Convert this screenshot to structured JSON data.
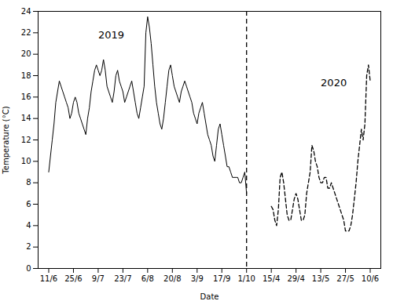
{
  "chart_data": {
    "type": "line",
    "xlabel": "Date",
    "ylabel": "Temperature (°C)",
    "xlim": [
      -6,
      188
    ],
    "xticks": [
      {
        "value": 0,
        "label": "11/6"
      },
      {
        "value": 14,
        "label": "25/6"
      },
      {
        "value": 28,
        "label": "9/7"
      },
      {
        "value": 42,
        "label": "23/7"
      },
      {
        "value": 56,
        "label": "6/8"
      },
      {
        "value": 70,
        "label": "20/8"
      },
      {
        "value": 84,
        "label": "3/9"
      },
      {
        "value": 98,
        "label": "17/9"
      },
      {
        "value": 112,
        "label": "1/10"
      },
      {
        "value": 126,
        "label": "15/4"
      },
      {
        "value": 140,
        "label": "29/4"
      },
      {
        "value": 154,
        "label": "13/5"
      },
      {
        "value": 168,
        "label": "27/5"
      },
      {
        "value": 182,
        "label": "10/6"
      }
    ],
    "ylim": [
      0,
      24
    ],
    "yticks": [
      0,
      2,
      4,
      6,
      8,
      10,
      12,
      14,
      16,
      18,
      20,
      22,
      24
    ],
    "grid": false,
    "series": [
      {
        "color": "#000000",
        "line_style": "solid",
        "x": [
          0,
          1,
          2,
          3,
          4,
          5,
          6,
          7,
          8,
          9,
          10,
          11,
          12,
          13,
          14,
          15,
          16,
          17,
          18,
          19,
          20,
          21,
          22,
          23,
          24,
          25,
          26,
          27,
          28,
          29,
          30,
          31,
          32,
          33,
          34,
          35,
          36,
          37,
          38,
          39,
          40,
          41,
          42,
          43,
          44,
          45,
          46,
          47,
          48,
          49,
          50,
          51,
          52,
          53,
          54,
          55,
          56,
          57,
          58,
          59,
          60,
          61,
          62,
          63,
          64,
          65,
          66,
          67,
          68,
          69,
          70,
          71,
          72,
          73,
          74,
          75,
          76,
          77,
          78,
          79,
          80,
          81,
          82,
          83,
          84,
          85,
          86,
          87,
          88,
          89,
          90,
          91,
          92,
          93,
          94,
          95,
          96,
          97,
          98,
          99,
          100,
          101,
          102,
          103,
          104,
          105,
          106,
          107,
          108,
          109,
          110,
          111,
          112
        ],
        "values": [
          9.0,
          10.5,
          12.0,
          13.5,
          15.5,
          16.5,
          17.5,
          17.0,
          16.5,
          16.0,
          15.5,
          15.0,
          14.0,
          14.5,
          15.5,
          16.0,
          15.5,
          14.5,
          14.0,
          13.5,
          13.0,
          12.5,
          14.0,
          15.0,
          16.5,
          17.5,
          18.5,
          19.0,
          18.5,
          18.0,
          18.5,
          19.5,
          18.5,
          17.0,
          16.5,
          16.0,
          15.5,
          16.5,
          18.0,
          18.5,
          17.5,
          17.0,
          16.5,
          15.5,
          16.0,
          16.5,
          17.0,
          17.5,
          16.5,
          15.5,
          14.5,
          14.0,
          15.0,
          16.0,
          17.0,
          22.0,
          23.5,
          22.5,
          21.0,
          19.0,
          17.0,
          15.5,
          14.5,
          13.5,
          13.0,
          14.0,
          15.5,
          17.0,
          18.5,
          19.0,
          18.0,
          17.0,
          16.5,
          16.0,
          15.5,
          16.5,
          17.0,
          17.5,
          17.0,
          16.5,
          16.0,
          15.5,
          14.5,
          14.0,
          13.5,
          14.5,
          15.0,
          15.5,
          14.5,
          13.5,
          12.5,
          12.0,
          11.5,
          10.5,
          10.0,
          11.5,
          13.0,
          13.5,
          12.5,
          11.5,
          10.5,
          9.5,
          9.5,
          9.0,
          8.5,
          8.5,
          8.5,
          8.5,
          8.0,
          8.0,
          8.5,
          9.0,
          7.0
        ]
      },
      {
        "color": "#000000",
        "line_style": "dashed",
        "x": [
          126,
          127,
          128,
          129,
          130,
          131,
          132,
          133,
          134,
          135,
          136,
          137,
          138,
          139,
          140,
          141,
          142,
          143,
          144,
          145,
          146,
          147,
          148,
          149,
          150,
          151,
          152,
          153,
          154,
          155,
          156,
          157,
          158,
          159,
          160,
          161,
          162,
          163,
          164,
          165,
          166,
          167,
          168,
          169,
          170,
          171,
          172,
          173,
          174,
          175,
          176,
          177,
          178,
          179,
          180,
          181,
          182
        ],
        "values": [
          5.8,
          5.5,
          4.5,
          4.0,
          5.5,
          8.5,
          9.0,
          8.0,
          6.5,
          5.0,
          4.5,
          4.5,
          5.5,
          6.5,
          7.0,
          6.5,
          5.5,
          4.5,
          4.5,
          5.0,
          7.0,
          8.0,
          9.0,
          11.5,
          11.0,
          10.0,
          9.5,
          8.5,
          8.0,
          8.0,
          8.5,
          8.5,
          7.5,
          7.5,
          8.0,
          7.5,
          7.0,
          6.5,
          6.0,
          5.5,
          5.0,
          4.5,
          3.5,
          3.5,
          3.5,
          4.0,
          5.0,
          6.5,
          8.0,
          10.0,
          11.5,
          13.0,
          12.0,
          13.5,
          18.0,
          19.0,
          17.5
        ]
      }
    ],
    "vlines": [
      {
        "x": 112,
        "color": "#000000",
        "line_style": "dashed"
      }
    ],
    "annotations": [
      {
        "text": "2019",
        "x": 28,
        "y": 21.5,
        "color": "#000000"
      },
      {
        "text": "2020",
        "x": 154,
        "y": 17.0,
        "color": "#000000"
      }
    ]
  }
}
